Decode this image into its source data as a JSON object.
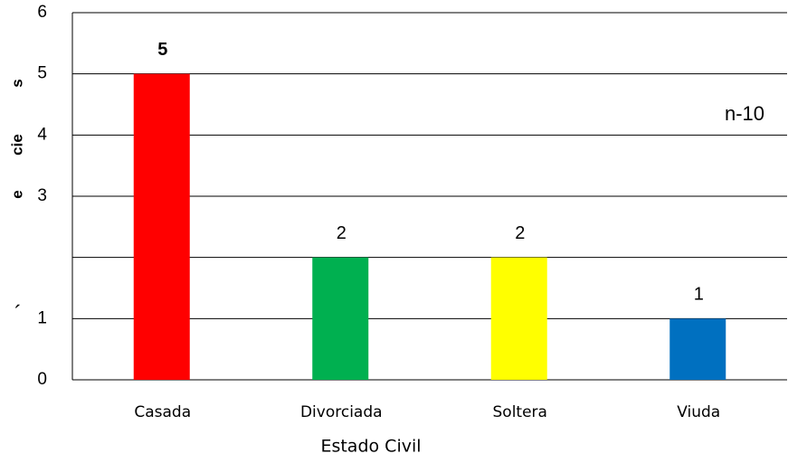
{
  "chart_data": {
    "type": "bar",
    "categories": [
      "Casada",
      "Divorciada",
      "Soltera",
      "Viuda"
    ],
    "values": [
      5,
      2,
      2,
      1
    ],
    "colors": [
      "#ff0000",
      "#00b050",
      "#ffff00",
      "#0070c0"
    ],
    "ylim": [
      0,
      6
    ],
    "yticks": [
      0,
      1,
      3,
      4,
      5,
      6
    ],
    "ygrid": [
      1,
      2,
      3,
      4,
      5
    ],
    "ylabel_parts": [
      "e",
      "cie",
      "s"
    ],
    "stray_mark": "´",
    "xlabel": "Estado Civil",
    "annotation": "n-10"
  }
}
